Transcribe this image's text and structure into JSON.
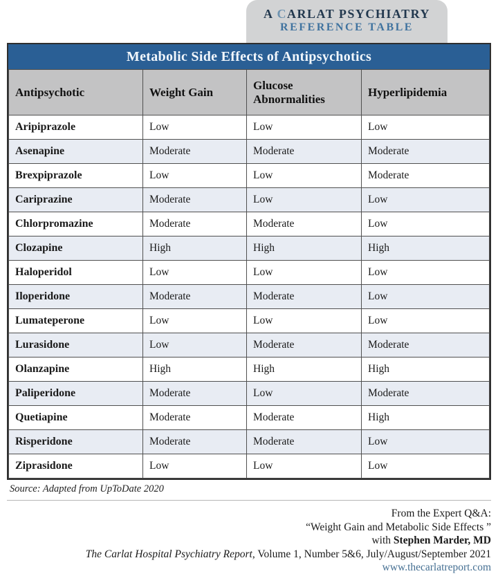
{
  "badge": {
    "line1_prefix": "A ",
    "line1_c": "C",
    "line1_rest": "ARLAT PSYCHIATRY",
    "line2": "REFERENCE TABLE"
  },
  "table": {
    "title": "Metabolic Side Effects of Antipsychotics",
    "columns": [
      "Antipsychotic",
      "Weight Gain",
      "Glucose Abnormalities",
      "Hyperlipidemia"
    ],
    "rows": [
      {
        "drug": "Aripiprazole",
        "weight_gain": "Low",
        "glucose_abnormalities": "Low",
        "hyperlipidemia": "Low"
      },
      {
        "drug": "Asenapine",
        "weight_gain": "Moderate",
        "glucose_abnormalities": "Moderate",
        "hyperlipidemia": "Moderate"
      },
      {
        "drug": "Brexpiprazole",
        "weight_gain": "Low",
        "glucose_abnormalities": "Low",
        "hyperlipidemia": "Moderate"
      },
      {
        "drug": "Cariprazine",
        "weight_gain": "Moderate",
        "glucose_abnormalities": "Low",
        "hyperlipidemia": "Low"
      },
      {
        "drug": "Chlorpromazine",
        "weight_gain": "Moderate",
        "glucose_abnormalities": "Moderate",
        "hyperlipidemia": "Low"
      },
      {
        "drug": "Clozapine",
        "weight_gain": "High",
        "glucose_abnormalities": "High",
        "hyperlipidemia": "High"
      },
      {
        "drug": "Haloperidol",
        "weight_gain": "Low",
        "glucose_abnormalities": "Low",
        "hyperlipidemia": "Low"
      },
      {
        "drug": "Iloperidone",
        "weight_gain": "Moderate",
        "glucose_abnormalities": "Moderate",
        "hyperlipidemia": "Low"
      },
      {
        "drug": "Lumateperone",
        "weight_gain": "Low",
        "glucose_abnormalities": "Low",
        "hyperlipidemia": "Low"
      },
      {
        "drug": "Lurasidone",
        "weight_gain": "Low",
        "glucose_abnormalities": "Moderate",
        "hyperlipidemia": "Moderate"
      },
      {
        "drug": "Olanzapine",
        "weight_gain": "High",
        "glucose_abnormalities": "High",
        "hyperlipidemia": "High"
      },
      {
        "drug": "Paliperidone",
        "weight_gain": "Moderate",
        "glucose_abnormalities": "Low",
        "hyperlipidemia": "Moderate"
      },
      {
        "drug": "Quetiapine",
        "weight_gain": "Moderate",
        "glucose_abnormalities": "Moderate",
        "hyperlipidemia": "High"
      },
      {
        "drug": "Risperidone",
        "weight_gain": "Moderate",
        "glucose_abnormalities": "Moderate",
        "hyperlipidemia": "Low"
      },
      {
        "drug": "Ziprasidone",
        "weight_gain": "Low",
        "glucose_abnormalities": "Low",
        "hyperlipidemia": "Low"
      }
    ],
    "source": "Source: Adapted from UpToDate 2020"
  },
  "footer": {
    "line1": "From the Expert Q&A:",
    "line2": "“Weight Gain and Metabolic Side Effects ”",
    "line3_prefix": "with ",
    "line3_name": "Stephen Marder, MD",
    "line4_title": "The Carlat Hospital Psychiatry Report",
    "line4_rest": ", Volume 1, Number 5&6, July/August/September 2021",
    "link": "www.thecarlatreport.com"
  },
  "colors": {
    "title_bar_blue": "#2a5f95",
    "header_gray": "#c3c3c4",
    "row_stripe": "#e8ecf3",
    "badge_gray": "#d2d3d4",
    "badge_navy": "#22384e",
    "badge_accent_blue": "#40739f",
    "link_blue": "#456f92"
  }
}
